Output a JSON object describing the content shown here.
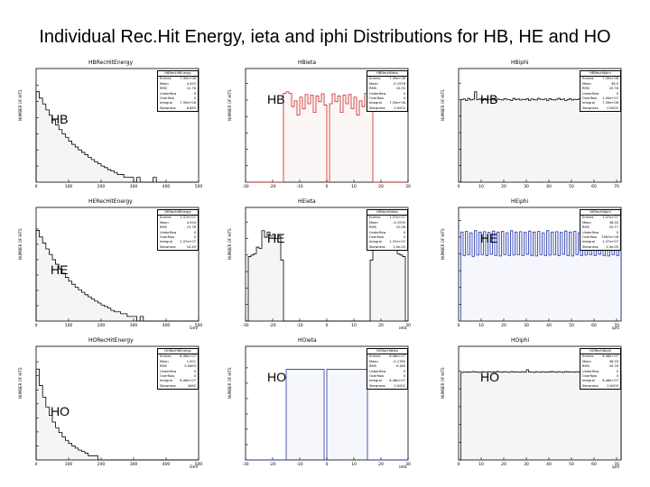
{
  "slide_title": "Individual Rec.Hit Energy, ieta and iphi Distributions for HB, HE and HO",
  "y_axis_label": "NUMBER OF HITS",
  "row_labels": [
    "HB",
    "HE",
    "HO"
  ],
  "panel_labels": [
    [
      "HB",
      "HB"
    ],
    [
      "HE",
      "HE"
    ],
    [
      "HO",
      "HO"
    ]
  ],
  "stats_field_names": [
    "Entries",
    "Mean",
    "RMS",
    "Underflow",
    "Overflow",
    "Integral",
    "Skewness"
  ],
  "colors": {
    "energy": "#000000",
    "hb_ieta": "#cc2222",
    "he_iphi": "#2233aa",
    "ho_ieta": "#2233aa",
    "default": "#000000"
  },
  "chart_data": [
    {
      "type": "bar",
      "id": "hb_energy",
      "title": "HBRecHitEnergy",
      "stats_title": "HBRecHitEnergy",
      "stats": [
        "7.39e+06",
        "4.492",
        "12.76",
        "0",
        "0",
        "7.39e+06",
        "8.683"
      ],
      "xlabel": "",
      "xticks": [
        "0",
        "100",
        "200",
        "300",
        "400",
        "500"
      ],
      "xlim": [
        0,
        500
      ],
      "log_y": true,
      "color_key": "energy",
      "values": [
        400000,
        160000,
        70000,
        30000,
        14000,
        7000,
        3500,
        1800,
        1000,
        600,
        350,
        220,
        150,
        100,
        70,
        50,
        35,
        25,
        18,
        14,
        10,
        8,
        6,
        5,
        4,
        3,
        3,
        2,
        2,
        2,
        1,
        2,
        1,
        1,
        1,
        1,
        2,
        1,
        1,
        1,
        1,
        1,
        1,
        1,
        1,
        1,
        1,
        1,
        1,
        1
      ]
    },
    {
      "type": "bar",
      "id": "hb_ieta",
      "title": "HBieta",
      "stats_title": "HBRecHitIeta",
      "stats": [
        "7.39e+06",
        "-0.1976",
        "10.55",
        "0",
        "0",
        "7.39e+06",
        "0.0002"
      ],
      "xlabel": "",
      "xticks": [
        "-30",
        "-20",
        "-10",
        "0",
        "10",
        "20",
        "30"
      ],
      "xlim": [
        -30,
        30
      ],
      "log_y": true,
      "color_key": "hb_ieta",
      "values": [
        0,
        0,
        0,
        0,
        0,
        0,
        0,
        0,
        0,
        0,
        0,
        0,
        0,
        0,
        260000,
        320000,
        260000,
        40000,
        90000,
        12000,
        150000,
        30000,
        220000,
        60000,
        200000,
        18000,
        180000,
        80000,
        240000,
        50000,
        0,
        60000,
        240000,
        80000,
        180000,
        18000,
        200000,
        60000,
        220000,
        30000,
        150000,
        12000,
        90000,
        40000,
        260000,
        320000,
        260000,
        0,
        0,
        0,
        0,
        0,
        0,
        0,
        0,
        0,
        0,
        0,
        0,
        0
      ]
    },
    {
      "type": "bar",
      "id": "hb_iphi",
      "title": "HBiphi",
      "stats_title": "HBRecHitIphi",
      "stats": [
        "7.39e+06",
        "36.5",
        "20.78",
        "0",
        "1.00e+07",
        "7.39e+06",
        "0.0002"
      ],
      "xlabel": "",
      "xticks": [
        "0",
        "10",
        "20",
        "30",
        "40",
        "50",
        "60",
        "70"
      ],
      "xlim": [
        0,
        72
      ],
      "log_y": true,
      "color_key": "default",
      "values": [
        0,
        100000,
        110000,
        90000,
        120000,
        95000,
        105000,
        300000,
        100000,
        110000,
        90000,
        115000,
        95000,
        105000,
        100000,
        120000,
        90000,
        110000,
        100000,
        95000,
        115000,
        105000,
        100000,
        90000,
        120000,
        100000,
        110000,
        95000,
        105000,
        100000,
        115000,
        90000,
        110000,
        100000,
        95000,
        120000,
        105000,
        100000,
        110000,
        90000,
        115000,
        100000,
        95000,
        105000,
        120000,
        100000,
        110000,
        90000,
        100000,
        115000,
        95000,
        105000,
        100000,
        110000,
        90000,
        120000,
        100000,
        95000,
        110000,
        105000,
        100000,
        90000,
        115000,
        100000,
        110000,
        95000,
        105000,
        120000,
        100000,
        90000,
        110000,
        100000
      ]
    },
    {
      "type": "bar",
      "id": "he_energy",
      "title": "HERecHitEnergy",
      "stats_title": "HERecHitEnergy",
      "stats": [
        "1.37e+07",
        "4.554",
        "13.78",
        "0",
        "0",
        "1.37e+07",
        "10.49"
      ],
      "xlabel": "GeV",
      "xticks": [
        "0",
        "100",
        "200",
        "300",
        "400",
        "500"
      ],
      "xlim": [
        0,
        500
      ],
      "log_y": true,
      "color_key": "energy",
      "values": [
        800000,
        300000,
        120000,
        50000,
        22000,
        10000,
        5000,
        2500,
        1300,
        700,
        400,
        250,
        160,
        110,
        75,
        52,
        38,
        27,
        20,
        15,
        11,
        9,
        7,
        5,
        4,
        4,
        3,
        3,
        2,
        2,
        2,
        1,
        2,
        1,
        1,
        1,
        1,
        1,
        1,
        1,
        1,
        1,
        1,
        1,
        1,
        1,
        1,
        1,
        1,
        1
      ]
    },
    {
      "type": "bar",
      "id": "he_ieta",
      "title": "HEieta",
      "stats_title": "HERecHitIeta",
      "stats": [
        "1.37e+07",
        "-0.1935",
        "22.06",
        "0",
        "0",
        "1.37e+07",
        "1.0e-05"
      ],
      "xlabel": "ieta",
      "xticks": [
        "-30",
        "-20",
        "-10",
        "0",
        "10",
        "20",
        "30"
      ],
      "xlim": [
        -30,
        30
      ],
      "log_y": true,
      "color_key": "default",
      "values": [
        0,
        8000,
        10000,
        12000,
        30000,
        25000,
        300000,
        120000,
        250000,
        150000,
        180000,
        100000,
        140000,
        5000,
        0,
        0,
        0,
        0,
        0,
        0,
        0,
        0,
        0,
        0,
        0,
        0,
        0,
        0,
        0,
        0,
        0,
        0,
        0,
        0,
        0,
        0,
        0,
        0,
        0,
        0,
        0,
        0,
        0,
        0,
        0,
        0,
        5000,
        140000,
        100000,
        180000,
        150000,
        250000,
        120000,
        300000,
        25000,
        30000,
        12000,
        10000,
        8000,
        0
      ]
    },
    {
      "type": "bar",
      "id": "he_iphi",
      "title": "HEiphi",
      "stats_title": "HERecHitIphi",
      "stats": [
        "1.37e+07",
        "36.50",
        "20.77",
        "0",
        "7967e+06",
        "1.37e+07",
        "1.0e-05"
      ],
      "xlabel": "iphi",
      "xticks": [
        "0",
        "10",
        "20",
        "30",
        "40",
        "50",
        "60",
        "70"
      ],
      "xlim": [
        0,
        72
      ],
      "log_y": true,
      "color_key": "he_iphi",
      "values": [
        0,
        200000,
        8000,
        220000,
        9000,
        180000,
        7000,
        240000,
        8500,
        200000,
        9000,
        210000,
        8000,
        190000,
        9500,
        230000,
        8000,
        200000,
        7500,
        220000,
        9000,
        180000,
        8000,
        240000,
        8500,
        200000,
        9000,
        210000,
        8000,
        190000,
        9500,
        230000,
        8000,
        200000,
        7500,
        220000,
        9000,
        180000,
        8000,
        240000,
        8500,
        200000,
        9000,
        210000,
        8000,
        190000,
        9500,
        230000,
        8000,
        200000,
        7500,
        220000,
        9000,
        180000,
        8000,
        240000,
        8500,
        200000,
        9000,
        210000,
        8000,
        190000,
        9500,
        230000,
        8000,
        200000,
        7500,
        220000,
        9000,
        180000,
        8000,
        240000
      ]
    },
    {
      "type": "bar",
      "id": "ho_energy",
      "title": "HORecHitEnergy",
      "stats_title": "HORecHitEnergy",
      "stats": [
        "6.46e+07",
        "1.001",
        "0.5693",
        "0",
        "0",
        "6.46e+07",
        "4462"
      ],
      "xlabel": "GeV",
      "xticks": [
        "0",
        "100",
        "200",
        "300",
        "400",
        "500"
      ],
      "xlim": [
        0,
        500
      ],
      "log_y": true,
      "color_key": "energy",
      "values": [
        3000000,
        200000,
        30000,
        6000,
        1500,
        500,
        200,
        90,
        45,
        25,
        15,
        10,
        7,
        5,
        4,
        3,
        2,
        2,
        2,
        1,
        1,
        1,
        1,
        1,
        1,
        0,
        1,
        0,
        0,
        0,
        0,
        0,
        0,
        0,
        0,
        0,
        0,
        0,
        0,
        0,
        0,
        0,
        0,
        0,
        0,
        0,
        0,
        0,
        0,
        0
      ]
    },
    {
      "type": "bar",
      "id": "ho_ieta",
      "title": "HOieta",
      "stats_title": "HORecHitIeta",
      "stats": [
        "6.46e+07",
        "-0.1780",
        "9.189",
        "0",
        "0",
        "6.46e+07",
        "0.0002"
      ],
      "xlabel": "ieta",
      "xticks": [
        "-30",
        "-20",
        "-10",
        "0",
        "10",
        "20",
        "30"
      ],
      "xlim": [
        -30,
        30
      ],
      "log_y": true,
      "color_key": "ho_ieta",
      "values": [
        0,
        0,
        0,
        0,
        0,
        0,
        0,
        0,
        0,
        0,
        0,
        0,
        0,
        0,
        0,
        800000,
        800000,
        800000,
        800000,
        800000,
        800000,
        800000,
        800000,
        800000,
        800000,
        800000,
        800000,
        800000,
        800000,
        1,
        800000,
        800000,
        800000,
        800000,
        800000,
        800000,
        800000,
        800000,
        800000,
        800000,
        800000,
        800000,
        800000,
        800000,
        800000,
        0,
        0,
        0,
        0,
        0,
        0,
        0,
        0,
        0,
        0,
        0,
        0,
        0,
        0,
        0
      ]
    },
    {
      "type": "bar",
      "id": "ho_iphi",
      "title": "HOiphi",
      "stats_title": "HORecHitIphi",
      "stats": [
        "6.46e+07",
        "36.59",
        "20.76",
        "0",
        "0",
        "6.46e+07",
        "0.0000"
      ],
      "xlabel": "iphi",
      "xticks": [
        "0",
        "10",
        "20",
        "30",
        "40",
        "50",
        "60",
        "70"
      ],
      "xlim": [
        0,
        72
      ],
      "log_y": true,
      "color_key": "default",
      "values": [
        0,
        85000,
        90000,
        88000,
        92000,
        87000,
        95000,
        89000,
        91000,
        86000,
        93000,
        90000,
        88000,
        94000,
        87000,
        92000,
        89000,
        96000,
        90000,
        88000,
        93000,
        91000,
        86000,
        95000,
        89000,
        92000,
        90000,
        88000,
        94000,
        87000,
        120000,
        89000,
        91000,
        86000,
        93000,
        90000,
        88000,
        94000,
        87000,
        92000,
        89000,
        96000,
        90000,
        88000,
        93000,
        91000,
        86000,
        95000,
        89000,
        92000,
        90000,
        88000,
        94000,
        87000,
        92000,
        89000,
        96000,
        90000,
        88000,
        93000,
        91000,
        86000,
        95000,
        89000,
        92000,
        90000,
        88000,
        94000,
        87000,
        92000,
        89000,
        96000
      ]
    }
  ]
}
